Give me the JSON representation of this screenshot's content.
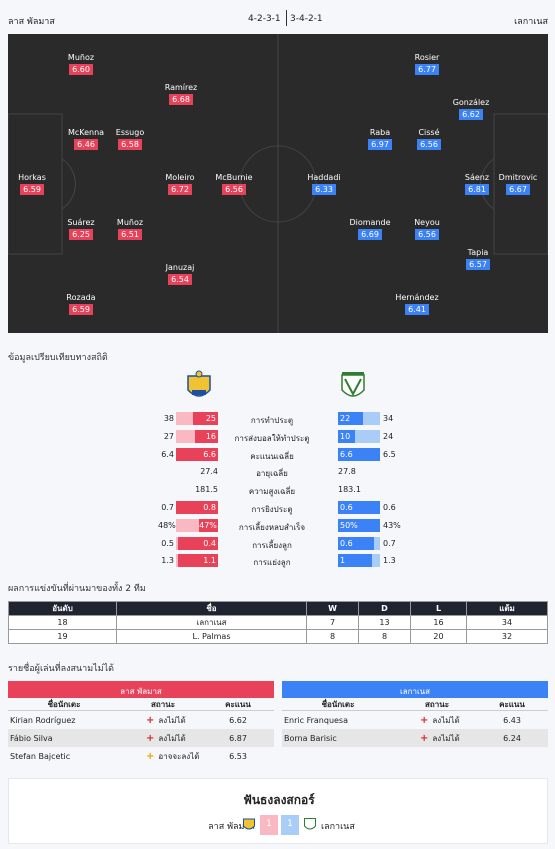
{
  "header": {
    "home": "ลาส พัลมาส",
    "away": "เลกาเนส",
    "home_formation": "4-2-3-1",
    "away_formation": "3-4-2-1"
  },
  "home_players": [
    {
      "name": "Muñoz",
      "rating": "6.60"
    },
    {
      "name": "Ramírez",
      "rating": "6.68"
    },
    {
      "name": "McKenna",
      "rating": "6.46"
    },
    {
      "name": "Essugo",
      "rating": "6.58"
    },
    {
      "name": "Horkas",
      "rating": "6.59"
    },
    {
      "name": "Moleiro",
      "rating": "6.72"
    },
    {
      "name": "McBurnie",
      "rating": "6.56"
    },
    {
      "name": "Suárez",
      "rating": "6.25"
    },
    {
      "name": "Muñoz",
      "rating": "6.51"
    },
    {
      "name": "Januzaj",
      "rating": "6.54"
    },
    {
      "name": "Rozada",
      "rating": "6.59"
    }
  ],
  "away_players": [
    {
      "name": "Rosier",
      "rating": "6.77"
    },
    {
      "name": "González",
      "rating": "6.62"
    },
    {
      "name": "Raba",
      "rating": "6.97"
    },
    {
      "name": "Cissé",
      "rating": "6.56"
    },
    {
      "name": "Haddadi",
      "rating": "6.33"
    },
    {
      "name": "Sáenz",
      "rating": "6.81"
    },
    {
      "name": "Dmitrovic",
      "rating": "6.67"
    },
    {
      "name": "Diomande",
      "rating": "6.69"
    },
    {
      "name": "Neyou",
      "rating": "6.56"
    },
    {
      "name": "Tapia",
      "rating": "6.57"
    },
    {
      "name": "Hernández",
      "rating": "6.41"
    }
  ],
  "stats_title": "ข้อมูลเปรียบเทียบทางสถิติ",
  "stats": [
    {
      "label": "การทำประตู",
      "hl": "38",
      "hv": "25",
      "av": "22",
      "al": "34",
      "hf": 0.6,
      "af": 0.6
    },
    {
      "label": "การส่งบอลให้ทำประตู",
      "hl": "27",
      "hv": "16",
      "av": "10",
      "al": "24",
      "hf": 0.55,
      "af": 0.4
    },
    {
      "label": "คะแนนเฉลี่ย",
      "hl": "6.4",
      "hv": "6.6",
      "av": "6.6",
      "al": "6.5",
      "hf": 1,
      "af": 1
    },
    {
      "label": "อายุเฉลี่ย",
      "hv": "27.4",
      "av": "27.8"
    },
    {
      "label": "ความสูงเฉลี่ย",
      "hv": "181.5",
      "av": "183.1"
    },
    {
      "label": "การยิงประตู",
      "hl": "0.7",
      "hv": "0.8",
      "av": "0.6",
      "al": "0.6",
      "hf": 1,
      "af": 1
    },
    {
      "label": "การเลี้ยงหลบสำเร็จ",
      "hl": "48%",
      "hv": "47%",
      "av": "50%",
      "al": "43%",
      "hf": 0.45,
      "af": 1
    },
    {
      "label": "การเลี้ยงลูก",
      "hl": "0.5",
      "hv": "0.4",
      "av": "0.6",
      "al": "0.7",
      "hf": 0.95,
      "af": 0.85
    },
    {
      "label": "การแย่งลูก",
      "hl": "1.3",
      "hv": "1.1",
      "av": "1",
      "al": "1.3",
      "hf": 0.95,
      "af": 0.8
    }
  ],
  "standings_title": "ผลการแข่งขันที่ผ่านมาของทั้ง 2 ทีม",
  "standings_headers": [
    "อันดับ",
    "ชื่อ",
    "W",
    "D",
    "L",
    "แต้ม"
  ],
  "standings": [
    [
      "18",
      "เลกาเนส",
      "7",
      "13",
      "16",
      "34"
    ],
    [
      "19",
      "L. Palmas",
      "8",
      "8",
      "20",
      "32"
    ]
  ],
  "injuries_title": "รายชื่อผู้เล่นที่ลงสนามไม่ได้",
  "inj_cols": [
    "ชื่อนักเตะ",
    "สถานะ",
    "คะแนน"
  ],
  "home_inj": {
    "team": "ลาส พัลมาส",
    "rows": [
      [
        "Kirian Rodríguez",
        "ลงไม่ได้",
        "6.62",
        "+"
      ],
      [
        "Fábio Silva",
        "ลงไม่ได้",
        "6.87",
        "+"
      ],
      [
        "Stefan Bajcetic",
        "อาจจะลงได้",
        "6.53",
        "+"
      ]
    ]
  },
  "away_inj": {
    "team": "เลกาเนส",
    "rows": [
      [
        "Enric Franquesa",
        "ลงไม่ได้",
        "6.43",
        "+"
      ],
      [
        "Borna Barisic",
        "ลงไม่ได้",
        "6.24",
        "+"
      ]
    ]
  },
  "footer": {
    "title": "ฟันธงลงสกอร์",
    "home": "ลาส พัลมาส",
    "away": "เลกาเนส",
    "home_score": "1",
    "away_score": "1"
  },
  "colors": {
    "home": "#e8425a",
    "away": "#3b82f6",
    "pitch": "#2a2a2a"
  }
}
